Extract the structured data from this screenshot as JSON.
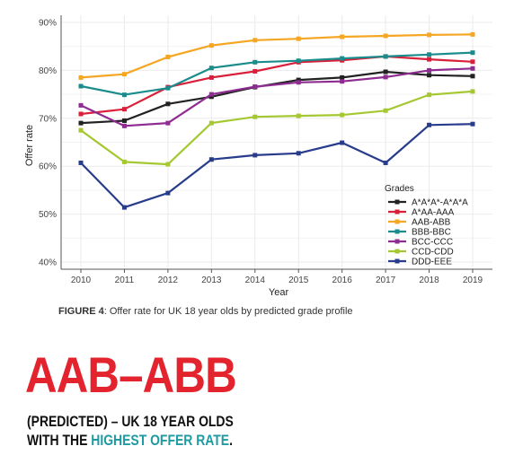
{
  "chart_data": {
    "type": "line",
    "title": "",
    "xlabel": "Year",
    "ylabel": "Offer rate",
    "x": [
      2010,
      2011,
      2012,
      2013,
      2014,
      2015,
      2016,
      2017,
      2018,
      2019
    ],
    "x_tick_labels": [
      "2010",
      "2011",
      "2012",
      "2013",
      "2014",
      "2015",
      "2016",
      "2017",
      "2018",
      "2019"
    ],
    "ylim": [
      0.385,
      0.915
    ],
    "y_ticks": [
      0.4,
      0.5,
      0.6,
      0.7,
      0.8,
      0.9
    ],
    "y_tick_labels": [
      "40%",
      "50%",
      "60%",
      "70%",
      "80%",
      "90%"
    ],
    "grid": true,
    "legend_title": "Grades",
    "legend_position": "bottom-right",
    "series": [
      {
        "name": "A*A*A*-A*A*A",
        "color": "#222222",
        "values": [
          0.69,
          0.695,
          0.73,
          0.745,
          0.765,
          0.78,
          0.785,
          0.797,
          0.79,
          0.788
        ]
      },
      {
        "name": "A*AA-AAA",
        "color": "#d9203a",
        "values": [
          0.709,
          0.719,
          0.765,
          0.785,
          0.798,
          0.817,
          0.821,
          0.829,
          0.823,
          0.818
        ]
      },
      {
        "name": "AAB-ABB",
        "color": "#f5a623",
        "values": [
          0.785,
          0.792,
          0.828,
          0.852,
          0.863,
          0.866,
          0.87,
          0.872,
          0.874,
          0.875
        ]
      },
      {
        "name": "BBB-BBC",
        "color": "#1b8c8c",
        "values": [
          0.767,
          0.749,
          0.763,
          0.805,
          0.817,
          0.82,
          0.825,
          0.829,
          0.833,
          0.837
        ]
      },
      {
        "name": "BCC-CCC",
        "color": "#8e2c91",
        "values": [
          0.727,
          0.684,
          0.69,
          0.75,
          0.766,
          0.775,
          0.777,
          0.786,
          0.8,
          0.804
        ]
      },
      {
        "name": "CCD-CDD",
        "color": "#a5c832",
        "values": [
          0.675,
          0.609,
          0.604,
          0.69,
          0.703,
          0.705,
          0.707,
          0.716,
          0.749,
          0.756
        ]
      },
      {
        "name": "DDD-EEE",
        "color": "#283c8c",
        "values": [
          0.607,
          0.514,
          0.544,
          0.614,
          0.623,
          0.627,
          0.649,
          0.607,
          0.686,
          0.688
        ]
      }
    ]
  },
  "caption": {
    "figure_label": "FIGURE 4",
    "text": ": Offer rate for UK 18 year olds by predicted grade profile"
  },
  "headline": {
    "title": "AAB–ABB",
    "line1": "(PREDICTED) – UK 18 YEAR OLDS",
    "line2_prefix": "WITH THE ",
    "line2_highlight": "HIGHEST OFFER RATE",
    "line2_suffix": "."
  },
  "colors": {
    "accent_red": "#e3232d",
    "accent_teal": "#1e9aa2",
    "panel_background": "#ffffff",
    "gridline": "#ebebeb"
  }
}
